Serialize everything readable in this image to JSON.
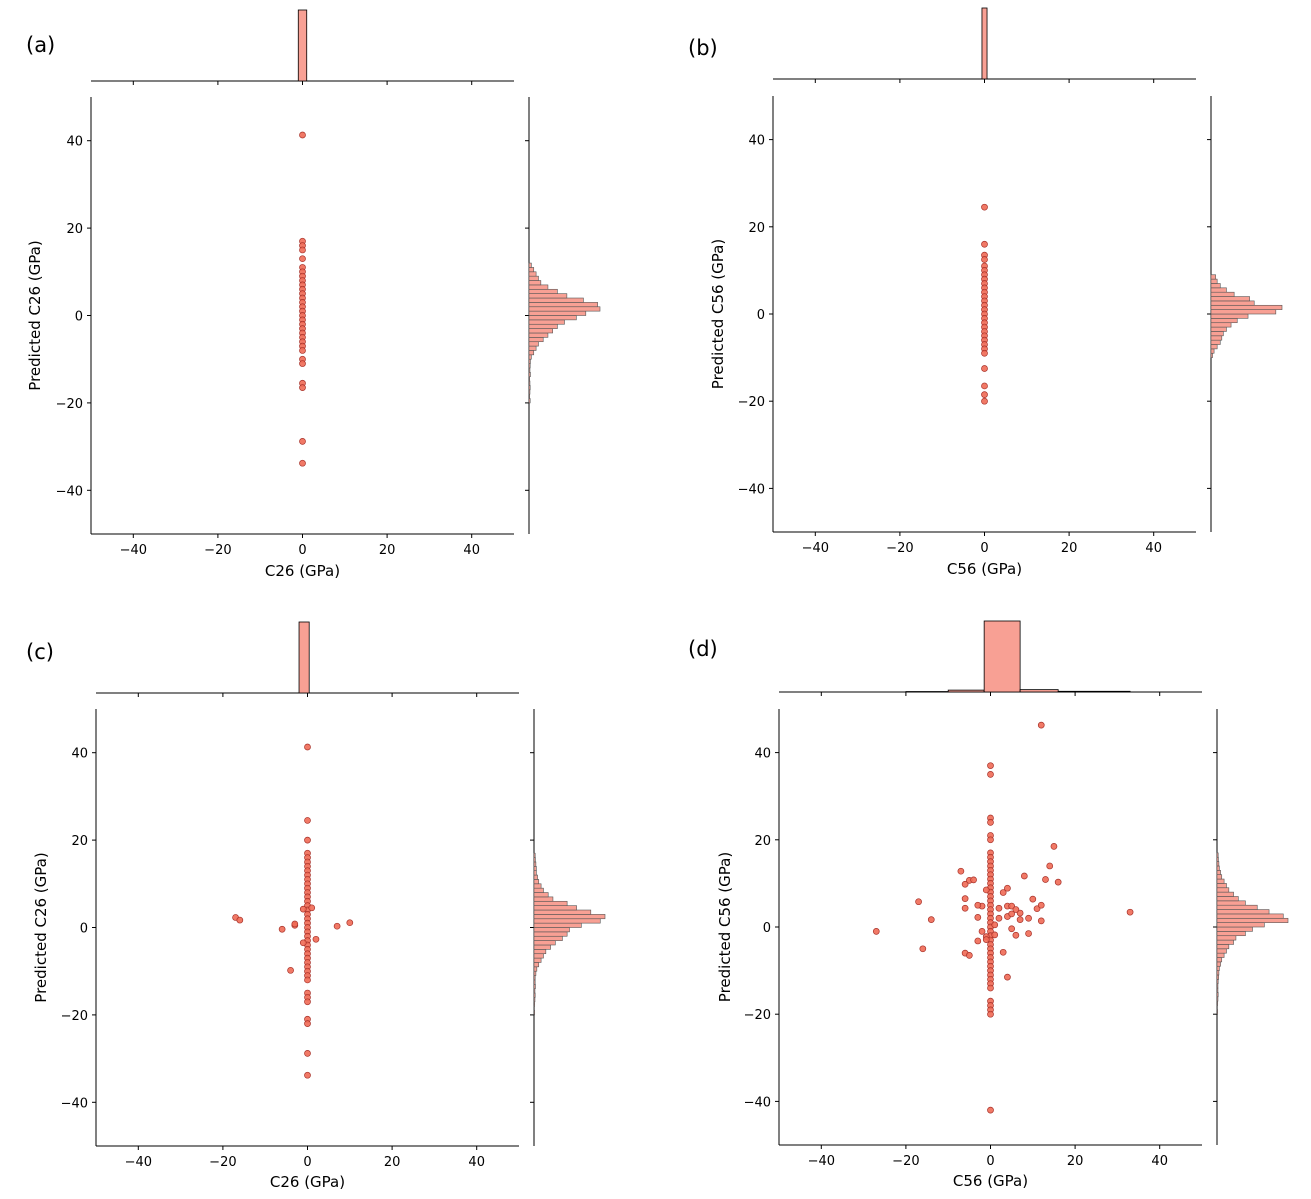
{
  "colors": {
    "marker_fill": "#f06a55",
    "marker_edge": "#a8322a",
    "hist_fill": "#f8a094",
    "axis": "#000000"
  },
  "chart_data": [
    {
      "panel": "(a)",
      "type": "scatter",
      "title": "",
      "xlabel": "C26 (GPa)",
      "ylabel": "Predicted C26 (GPa)",
      "xlim": [
        -50,
        50
      ],
      "ylim": [
        -50,
        50
      ],
      "xticks": [
        -40,
        -20,
        0,
        20,
        40
      ],
      "yticks": [
        -40,
        -20,
        0,
        20,
        40
      ],
      "xtick_labels": [
        "−40",
        "−20",
        "0",
        "20",
        "40"
      ],
      "ytick_labels": [
        "−40",
        "−20",
        "0",
        "20",
        "40"
      ],
      "points": [
        [
          0,
          41.3
        ],
        [
          0,
          17
        ],
        [
          0,
          16
        ],
        [
          0,
          15
        ],
        [
          0,
          13
        ],
        [
          0,
          11
        ],
        [
          0,
          10
        ],
        [
          0,
          9
        ],
        [
          0,
          8
        ],
        [
          0,
          7
        ],
        [
          0,
          6
        ],
        [
          0,
          5
        ],
        [
          0,
          4
        ],
        [
          0,
          3
        ],
        [
          0,
          2
        ],
        [
          0,
          1
        ],
        [
          0,
          0
        ],
        [
          0,
          -1
        ],
        [
          0,
          -2
        ],
        [
          0,
          -3
        ],
        [
          0,
          -4
        ],
        [
          0,
          -5
        ],
        [
          0,
          -6
        ],
        [
          0,
          -7
        ],
        [
          0,
          -8
        ],
        [
          0,
          -10
        ],
        [
          0,
          -11
        ],
        [
          0,
          -15.5
        ],
        [
          0,
          -16.5
        ],
        [
          0,
          -28.8
        ],
        [
          0,
          -33.8
        ]
      ],
      "x_hist": {
        "bin_edges": [
          -1,
          1
        ],
        "counts": [
          1
        ]
      },
      "y_hist": {
        "bin_edges": [
          -20,
          -19,
          -18,
          -17,
          -16,
          -15,
          -14,
          -13,
          -12,
          -11,
          -10,
          -9,
          -8,
          -7,
          -6,
          -5,
          -4,
          -3,
          -2,
          -1,
          0,
          1,
          2,
          3,
          4,
          5,
          6,
          7,
          8,
          9,
          10,
          11,
          12
        ],
        "counts": [
          0.5,
          0.3,
          0.4,
          0.5,
          0.4,
          0.3,
          0.6,
          0.4,
          0.5,
          0.6,
          1,
          2,
          3,
          4,
          6,
          8,
          10,
          12,
          15,
          20,
          24,
          30,
          29,
          23,
          16,
          12,
          8,
          5,
          4,
          3,
          2,
          1
        ]
      }
    },
    {
      "panel": "(b)",
      "type": "scatter",
      "title": "",
      "xlabel": "C56 (GPa)",
      "ylabel": "Predicted C56 (GPa)",
      "xlim": [
        -50,
        50
      ],
      "ylim": [
        -50,
        50
      ],
      "xticks": [
        -40,
        -20,
        0,
        20,
        40
      ],
      "yticks": [
        -40,
        -20,
        0,
        20,
        40
      ],
      "xtick_labels": [
        "−40",
        "−20",
        "0",
        "20",
        "40"
      ],
      "ytick_labels": [
        "−40",
        "−20",
        "0",
        "20",
        "40"
      ],
      "points": [
        [
          0,
          24.5
        ],
        [
          0,
          16
        ],
        [
          0,
          13.5
        ],
        [
          0,
          12.5
        ],
        [
          0,
          11
        ],
        [
          0,
          10
        ],
        [
          0,
          9
        ],
        [
          0,
          8
        ],
        [
          0,
          7
        ],
        [
          0,
          6
        ],
        [
          0,
          5
        ],
        [
          0,
          4
        ],
        [
          0,
          3
        ],
        [
          0,
          2
        ],
        [
          0,
          1
        ],
        [
          0,
          0
        ],
        [
          0,
          -1
        ],
        [
          0,
          -2
        ],
        [
          0,
          -3
        ],
        [
          0,
          -4
        ],
        [
          0,
          -5
        ],
        [
          0,
          -6
        ],
        [
          0,
          -7
        ],
        [
          0,
          -8
        ],
        [
          0,
          -9
        ],
        [
          0,
          -12.5
        ],
        [
          0,
          -16.5
        ],
        [
          0,
          -18.5
        ],
        [
          0,
          -20
        ]
      ],
      "x_hist": {
        "bin_edges": [
          -0.6,
          0.6
        ],
        "counts": [
          1
        ]
      },
      "y_hist": {
        "bin_edges": [
          -10,
          -9,
          -8,
          -7,
          -6,
          -5,
          -4,
          -3,
          -2,
          -1,
          0,
          1,
          2,
          3,
          4,
          5,
          6,
          7,
          8,
          9
        ],
        "counts": [
          1,
          2,
          4,
          6,
          7,
          8,
          10,
          13,
          17,
          24,
          42,
          46,
          28,
          25,
          15,
          10,
          6,
          4,
          3
        ]
      }
    },
    {
      "panel": "(c)",
      "type": "scatter",
      "title": "",
      "xlabel": "C26 (GPa)",
      "ylabel": "Predicted C26 (GPa)",
      "xlim": [
        -50,
        50
      ],
      "ylim": [
        -50,
        50
      ],
      "xticks": [
        -40,
        -20,
        0,
        20,
        40
      ],
      "yticks": [
        -40,
        -20,
        0,
        20,
        40
      ],
      "xtick_labels": [
        "−40",
        "−20",
        "0",
        "20",
        "40"
      ],
      "ytick_labels": [
        "−40",
        "−20",
        "0",
        "20",
        "40"
      ],
      "points": [
        [
          0,
          41.3
        ],
        [
          0,
          24.5
        ],
        [
          0,
          20
        ],
        [
          0,
          17
        ],
        [
          0,
          16
        ],
        [
          0,
          15
        ],
        [
          0,
          14
        ],
        [
          0,
          13
        ],
        [
          0,
          12
        ],
        [
          0,
          11
        ],
        [
          0,
          10
        ],
        [
          0,
          9
        ],
        [
          0,
          8
        ],
        [
          0,
          7
        ],
        [
          0,
          6
        ],
        [
          0,
          5
        ],
        [
          0,
          4
        ],
        [
          0,
          3
        ],
        [
          0,
          2
        ],
        [
          0,
          1
        ],
        [
          0,
          0
        ],
        [
          0,
          -1
        ],
        [
          0,
          -2
        ],
        [
          0,
          -3
        ],
        [
          0,
          -4
        ],
        [
          0,
          -5
        ],
        [
          0,
          -6
        ],
        [
          0,
          -7
        ],
        [
          0,
          -8
        ],
        [
          0,
          -9
        ],
        [
          0,
          -10
        ],
        [
          0,
          -11
        ],
        [
          0,
          -12
        ],
        [
          0,
          -15
        ],
        [
          0,
          -16
        ],
        [
          0,
          -17
        ],
        [
          0,
          -21
        ],
        [
          0,
          -22
        ],
        [
          0,
          -28.8
        ],
        [
          0,
          -33.8
        ],
        [
          -17,
          2.3
        ],
        [
          -16,
          1.7
        ],
        [
          -6,
          -0.4
        ],
        [
          -4,
          -9.8
        ],
        [
          -3,
          0.5
        ],
        [
          -3,
          0.8
        ],
        [
          -1,
          4.2
        ],
        [
          -1,
          -3.5
        ],
        [
          1,
          4.5
        ],
        [
          2,
          -2.7
        ],
        [
          7,
          0.3
        ],
        [
          10,
          1.1
        ]
      ],
      "x_hist": {
        "bin_edges": [
          -2,
          0.4
        ],
        "counts": [
          1
        ]
      },
      "y_hist": {
        "bin_edges": [
          -20,
          -19,
          -18,
          -17,
          -16,
          -15,
          -14,
          -13,
          -12,
          -11,
          -10,
          -9,
          -8,
          -7,
          -6,
          -5,
          -4,
          -3,
          -2,
          -1,
          0,
          1,
          2,
          3,
          4,
          5,
          6,
          7,
          8,
          9,
          10,
          11,
          12,
          13,
          14,
          15,
          16,
          17
        ],
        "counts": [
          0.3,
          0.2,
          0.3,
          0.4,
          0.5,
          0.4,
          0.6,
          0.5,
          0.5,
          0.8,
          1.2,
          2,
          3,
          4,
          5,
          7,
          9,
          12,
          14,
          15,
          20,
          28,
          30,
          24,
          18,
          14,
          8,
          6,
          4,
          3,
          2,
          1.5,
          1,
          1,
          0.8,
          0.6,
          0.5
        ]
      }
    },
    {
      "panel": "(d)",
      "type": "scatter",
      "title": "",
      "xlabel": "C56 (GPa)",
      "ylabel": "Predicted C56 (GPa)",
      "xlim": [
        -50,
        50
      ],
      "ylim": [
        -50,
        50
      ],
      "xticks": [
        -40,
        -20,
        0,
        20,
        40
      ],
      "yticks": [
        -40,
        -20,
        0,
        20,
        40
      ],
      "xtick_labels": [
        "−40",
        "−20",
        "0",
        "20",
        "40"
      ],
      "ytick_labels": [
        "−40",
        "−20",
        "0",
        "20",
        "40"
      ],
      "points": [
        [
          0,
          37
        ],
        [
          0,
          35
        ],
        [
          0,
          25
        ],
        [
          0,
          24
        ],
        [
          0,
          21
        ],
        [
          0,
          20
        ],
        [
          0,
          17
        ],
        [
          0,
          16
        ],
        [
          0,
          15
        ],
        [
          0,
          14
        ],
        [
          0,
          13
        ],
        [
          0,
          12
        ],
        [
          0,
          11
        ],
        [
          0,
          10
        ],
        [
          0,
          9
        ],
        [
          0,
          8
        ],
        [
          0,
          7
        ],
        [
          0,
          6
        ],
        [
          0,
          5
        ],
        [
          0,
          4
        ],
        [
          0,
          3
        ],
        [
          0,
          2
        ],
        [
          0,
          1
        ],
        [
          0,
          0
        ],
        [
          0,
          -1
        ],
        [
          0,
          -2
        ],
        [
          0,
          -3
        ],
        [
          0,
          -4
        ],
        [
          0,
          -5
        ],
        [
          0,
          -6
        ],
        [
          0,
          -7
        ],
        [
          0,
          -8
        ],
        [
          0,
          -9
        ],
        [
          0,
          -10
        ],
        [
          0,
          -11
        ],
        [
          0,
          -12
        ],
        [
          0,
          -13
        ],
        [
          0,
          -14
        ],
        [
          0,
          -17
        ],
        [
          0,
          -18
        ],
        [
          0,
          -19
        ],
        [
          0,
          -20
        ],
        [
          0,
          -42
        ],
        [
          12,
          46.3
        ],
        [
          33,
          3.4
        ],
        [
          -27,
          -1
        ],
        [
          -17,
          5.8
        ],
        [
          -16,
          -5
        ],
        [
          -14,
          1.7
        ],
        [
          -7,
          12.8
        ],
        [
          -6,
          -6
        ],
        [
          -5,
          -6.5
        ],
        [
          -6,
          9.8
        ],
        [
          -6,
          6.5
        ],
        [
          -6,
          4.3
        ],
        [
          -5,
          10.7
        ],
        [
          -4,
          10.8
        ],
        [
          -3,
          2.2
        ],
        [
          -2,
          -1
        ],
        [
          -2,
          4.8
        ],
        [
          -3,
          -3.2
        ],
        [
          -1,
          -2.2
        ],
        [
          -1,
          -2.9
        ],
        [
          -1,
          8.5
        ],
        [
          1,
          -1.8
        ],
        [
          1,
          0.5
        ],
        [
          2,
          2
        ],
        [
          2,
          4.3
        ],
        [
          3,
          7.9
        ],
        [
          3,
          -5.8
        ],
        [
          4,
          8.9
        ],
        [
          4,
          4.8
        ],
        [
          4,
          2.4
        ],
        [
          5,
          -0.4
        ],
        [
          5,
          4.8
        ],
        [
          5,
          3
        ],
        [
          6,
          -1.9
        ],
        [
          7,
          3.2
        ],
        [
          8,
          11.7
        ],
        [
          9,
          2
        ],
        [
          10,
          6.4
        ],
        [
          11,
          4.2
        ],
        [
          12,
          5
        ],
        [
          12,
          1.4
        ],
        [
          13,
          10.9
        ],
        [
          14,
          14
        ],
        [
          15,
          18.5
        ],
        [
          16,
          10.3
        ],
        [
          7,
          1.7
        ],
        [
          9,
          -1.5
        ],
        [
          6,
          4
        ],
        [
          4,
          -11.5
        ],
        [
          -3,
          5
        ]
      ],
      "x_hist": {
        "bin_edges": [
          -20,
          -10,
          -1.5,
          7,
          16,
          33
        ],
        "counts": [
          0.2,
          0.8,
          30,
          1.0,
          0.3
        ]
      },
      "y_hist": {
        "bin_edges": [
          -20,
          -19,
          -18,
          -17,
          -16,
          -15,
          -14,
          -13,
          -12,
          -11,
          -10,
          -9,
          -8,
          -7,
          -6,
          -5,
          -4,
          -3,
          -2,
          -1,
          0,
          1,
          2,
          3,
          4,
          5,
          6,
          7,
          8,
          9,
          10,
          11,
          12,
          13,
          14,
          15,
          16,
          17
        ],
        "counts": [
          0.3,
          0.2,
          0.3,
          0.4,
          0.5,
          0.4,
          0.4,
          0.5,
          0.7,
          0.8,
          1,
          1.5,
          2,
          3,
          4,
          5,
          7,
          8,
          12,
          15,
          20,
          30,
          28,
          22,
          17,
          12,
          9,
          7,
          5,
          4,
          3,
          2,
          1.5,
          1,
          0.8,
          0.6,
          0.5
        ]
      }
    }
  ]
}
